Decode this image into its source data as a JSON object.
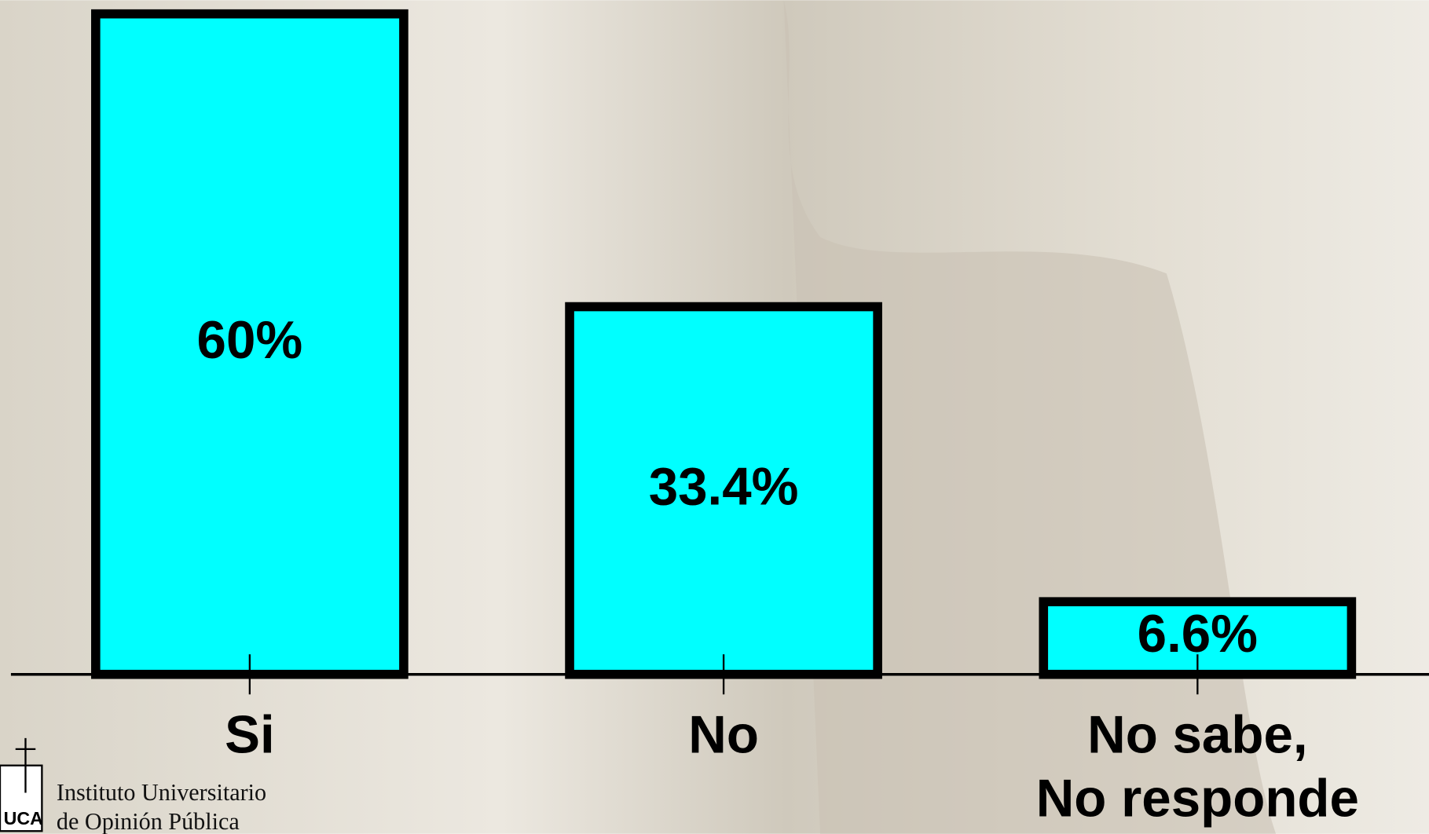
{
  "chart_data": {
    "type": "bar",
    "categories": [
      "Si",
      "No",
      "No sabe,\nNo responde"
    ],
    "values": [
      60,
      33.4,
      6.6
    ],
    "value_labels": [
      "60%",
      "33.4%",
      "6.6%"
    ],
    "color": "#00ffff"
  },
  "logo": {
    "line1": "Instituto Universitario",
    "line2": "de Opinión Pública",
    "mark": "UCA"
  }
}
